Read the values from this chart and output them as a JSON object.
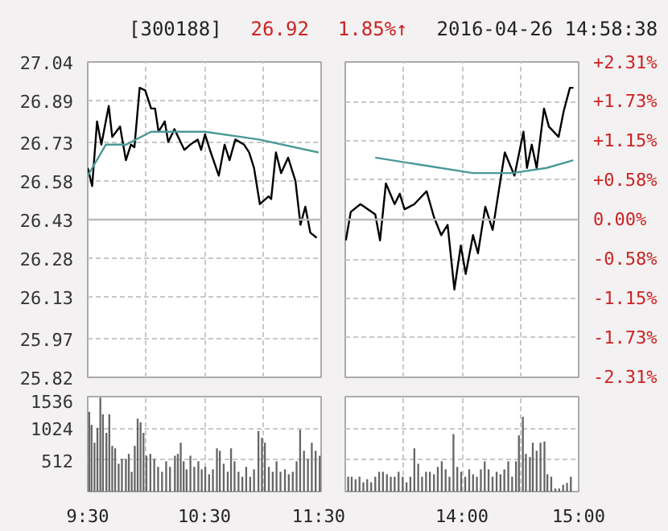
{
  "chart_data": [
    {
      "type": "line",
      "title": "[300188]",
      "annotations": [
        "26.92",
        "1.85%↑",
        "2016-04-26 14:58:38"
      ],
      "xlim": [
        9.5,
        11.5
      ],
      "xticks": [
        9.5,
        10,
        10.5,
        11,
        11.5
      ],
      "ylim": [
        25.82,
        27.04
      ],
      "yticks": [
        25.82,
        25.97,
        26.13,
        26.28,
        26.43,
        26.58,
        26.73,
        26.89,
        27.04
      ],
      "ref_lines": [
        {
          "axis": "y",
          "value": 26.43,
          "color": "#bbbbbb"
        }
      ],
      "grid": true,
      "tick_labels": "y",
      "line_style": "solid",
      "series": [
        {
          "color": "#000000",
          "x": [
            9.5,
            9.538,
            9.58,
            9.617,
            9.68,
            9.71,
            9.777,
            9.827,
            9.87,
            9.9,
            9.945,
            9.993,
            10.043,
            10.077,
            10.107,
            10.16,
            10.19,
            10.243,
            10.328,
            10.378,
            10.442,
            10.472,
            10.505,
            10.547,
            10.623,
            10.673,
            10.715,
            10.765,
            10.84,
            10.883,
            10.925,
            10.975,
            11.05,
            11.072,
            11.113,
            11.157,
            11.217,
            11.28,
            11.323,
            11.365,
            11.407,
            11.462
          ],
          "values": [
            26.63,
            26.56,
            26.81,
            26.72,
            26.87,
            26.75,
            26.79,
            26.66,
            26.72,
            26.71,
            26.94,
            26.93,
            26.86,
            26.86,
            26.77,
            26.81,
            26.73,
            26.78,
            26.7,
            26.72,
            26.74,
            26.7,
            26.76,
            26.7,
            26.6,
            26.72,
            26.66,
            26.74,
            26.72,
            26.69,
            26.63,
            26.49,
            26.52,
            26.51,
            26.69,
            26.61,
            26.67,
            26.58,
            26.41,
            26.48,
            26.38,
            26.36
          ]
        },
        {
          "color": "#4a9a96",
          "x": [
            9.5,
            9.655,
            9.827,
            10.043,
            10.505,
            10.967,
            11.478
          ],
          "values": [
            26.6,
            26.72,
            26.72,
            26.77,
            26.77,
            26.74,
            26.69
          ]
        }
      ]
    },
    {
      "type": "line",
      "xlim": [
        13,
        15
      ],
      "xticks": [
        13,
        13.5,
        14,
        14.5,
        15
      ],
      "ylim": [
        25.82,
        27.04
      ],
      "y2lim": [
        -2.31,
        2.31
      ],
      "y2ticks": [
        {
          "value": -2.31,
          "label": "-2.31%"
        },
        {
          "value": -1.73,
          "label": "-1.73%"
        },
        {
          "value": -1.15,
          "label": "-1.15%"
        },
        {
          "value": -0.58,
          "label": "-0.58%"
        },
        {
          "value": 0,
          "label": "0.00%"
        },
        {
          "value": 0.58,
          "label": "+0.58%"
        },
        {
          "value": 1.15,
          "label": "+1.15%"
        },
        {
          "value": 1.73,
          "label": "+1.73%"
        },
        {
          "value": 2.31,
          "label": "+2.31%"
        }
      ],
      "ref_lines": [
        {
          "axis": "y2",
          "value": 0,
          "color": "#bbbbbb"
        }
      ],
      "grid": true,
      "tick_labels": "y",
      "line_style": "solid",
      "series": [
        {
          "color": "#000000",
          "x": [
            13.005,
            13.047,
            13.13,
            13.163,
            13.257,
            13.298,
            13.348,
            13.423,
            13.467,
            13.508,
            13.592,
            13.697,
            13.76,
            13.822,
            13.877,
            13.935,
            13.99,
            14.032,
            14.095,
            14.137,
            14.2,
            14.263,
            14.367,
            14.45,
            14.527,
            14.557,
            14.598,
            14.64,
            14.703,
            14.745,
            14.828,
            14.872,
            14.925,
            14.955
          ],
          "values": [
            26.35,
            26.46,
            26.49,
            26.48,
            26.45,
            26.35,
            26.57,
            26.49,
            26.53,
            26.47,
            26.49,
            26.54,
            26.44,
            26.37,
            26.41,
            26.16,
            26.33,
            26.22,
            26.37,
            26.3,
            26.48,
            26.39,
            26.69,
            26.6,
            26.77,
            26.63,
            26.72,
            26.63,
            26.86,
            26.79,
            26.75,
            26.85,
            26.94,
            26.94
          ]
        },
        {
          "color": "#4a9a96",
          "x": [
            13.257,
            13.675,
            14.095,
            14.43,
            14.725,
            14.955
          ],
          "values": [
            26.67,
            26.64,
            26.61,
            26.61,
            26.63,
            26.66
          ]
        }
      ]
    },
    {
      "type": "bar",
      "color": "#666666",
      "grid": true,
      "xlim": [
        9.5,
        11.5
      ],
      "xticks": [
        {
          "value": 9.5,
          "label": "9:30"
        },
        {
          "value": 10,
          "label": null
        },
        {
          "value": 10.5,
          "label": "10:30"
        },
        {
          "value": 11,
          "label": null
        },
        {
          "value": 11.5,
          "label": "11:30"
        }
      ],
      "ylim": [
        0,
        1536
      ],
      "yticks": [
        512,
        1024,
        1536
      ],
      "x": [
        9.513,
        9.533,
        9.558,
        9.583,
        9.608,
        9.63,
        9.66,
        9.685,
        9.71,
        9.735,
        9.765,
        9.793,
        9.827,
        9.852,
        9.877,
        9.903,
        9.928,
        9.953,
        9.978,
        10.003,
        10.037,
        10.07,
        10.103,
        10.137,
        10.172,
        10.205,
        10.247,
        10.272,
        10.297,
        10.322,
        10.347,
        10.38,
        10.413,
        10.448,
        10.477,
        10.507,
        10.54,
        10.573,
        10.607,
        10.632,
        10.665,
        10.7,
        10.728,
        10.758,
        10.792,
        10.825,
        10.858,
        10.892,
        10.925,
        10.963,
        10.993,
        11.018,
        11.052,
        11.085,
        11.118,
        11.152,
        11.19,
        11.223,
        11.257,
        11.29,
        11.32,
        11.353,
        11.387,
        11.42,
        11.453,
        11.488
      ],
      "values": [
        1290,
        1080,
        790,
        1030,
        1520,
        1250,
        950,
        1250,
        740,
        700,
        450,
        530,
        530,
        610,
        320,
        740,
        1180,
        1120,
        950,
        580,
        610,
        530,
        400,
        320,
        490,
        400,
        580,
        610,
        790,
        490,
        360,
        580,
        400,
        490,
        360,
        400,
        280,
        360,
        700,
        660,
        450,
        320,
        700,
        490,
        320,
        240,
        400,
        240,
        360,
        980,
        870,
        790,
        400,
        320,
        490,
        320,
        360,
        280,
        320,
        490,
        1000,
        660,
        530,
        790,
        660,
        580
      ]
    },
    {
      "type": "bar",
      "color": "#666666",
      "grid": true,
      "xlim": [
        13,
        15
      ],
      "tick_labels": "x",
      "xticks": [
        {
          "value": 13,
          "label": null
        },
        {
          "value": 13.5,
          "label": null
        },
        {
          "value": 14,
          "label": "14:00"
        },
        {
          "value": 14.5,
          "label": null
        },
        {
          "value": 15,
          "label": "15:00"
        }
      ],
      "ylim": [
        0,
        1536
      ],
      "yticks": [
        512,
        1024,
        1536
      ],
      "x": [
        13.025,
        13.055,
        13.088,
        13.122,
        13.155,
        13.188,
        13.222,
        13.257,
        13.29,
        13.323,
        13.357,
        13.39,
        13.423,
        13.457,
        13.492,
        13.525,
        13.558,
        13.592,
        13.625,
        13.658,
        13.692,
        13.725,
        13.76,
        13.793,
        13.827,
        13.86,
        13.893,
        13.927,
        13.96,
        13.993,
        14.028,
        14.062,
        14.095,
        14.128,
        14.162,
        14.195,
        14.228,
        14.262,
        14.297,
        14.33,
        14.363,
        14.397,
        14.43,
        14.463,
        14.488,
        14.522,
        14.548,
        14.582,
        14.607,
        14.64,
        14.673,
        14.707,
        14.732,
        14.765,
        14.8,
        14.833,
        14.867,
        14.9,
        14.933
      ],
      "values": [
        240,
        240,
        200,
        240,
        150,
        200,
        150,
        240,
        320,
        320,
        280,
        240,
        240,
        320,
        240,
        150,
        240,
        700,
        450,
        240,
        320,
        320,
        280,
        400,
        490,
        360,
        240,
        930,
        400,
        320,
        240,
        360,
        280,
        240,
        360,
        490,
        360,
        240,
        320,
        280,
        360,
        490,
        240,
        490,
        910,
        1210,
        610,
        560,
        790,
        660,
        790,
        810,
        280,
        240,
        50,
        50,
        110,
        140,
        240
      ]
    }
  ]
}
